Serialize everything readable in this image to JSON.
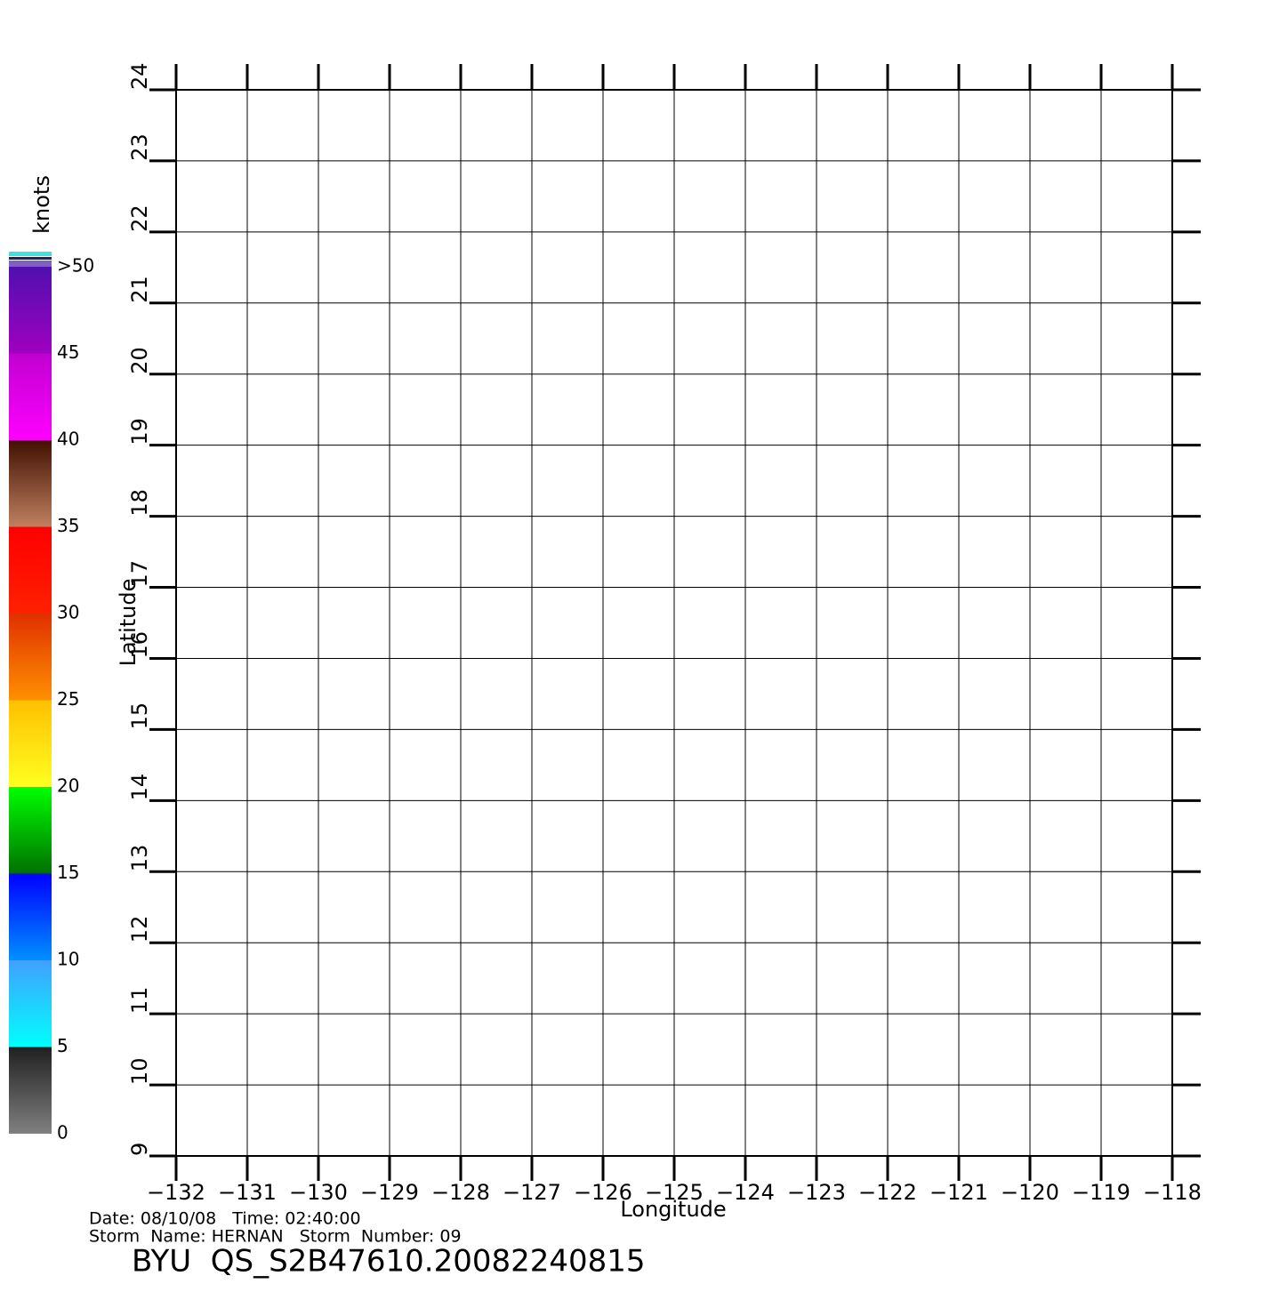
{
  "chart_data": {
    "type": "wind-barb",
    "xlabel": "Longitude",
    "ylabel": "Latitude",
    "xlim": [
      -132,
      -118
    ],
    "xticks": [
      {
        "value": -132,
        "label": "−132"
      },
      {
        "value": -131,
        "label": "−131"
      },
      {
        "value": -130,
        "label": "−130"
      },
      {
        "value": -129,
        "label": "−129"
      },
      {
        "value": -128,
        "label": "−128"
      },
      {
        "value": -127,
        "label": "−127"
      },
      {
        "value": -126,
        "label": "−126"
      },
      {
        "value": -125,
        "label": "−125"
      },
      {
        "value": -124,
        "label": "−124"
      },
      {
        "value": -123,
        "label": "−123"
      },
      {
        "value": -122,
        "label": "−122"
      },
      {
        "value": -121,
        "label": "−121"
      },
      {
        "value": -120,
        "label": "−120"
      },
      {
        "value": -119,
        "label": "−119"
      },
      {
        "value": -118,
        "label": "−118"
      }
    ],
    "ylim": [
      9,
      24
    ],
    "yticks": [
      9,
      10,
      11,
      12,
      13,
      14,
      15,
      16,
      17,
      18,
      19,
      20,
      21,
      22,
      23,
      24
    ],
    "grid": true,
    "colorbar": {
      "label": "knots",
      "lim": [
        0,
        50
      ],
      "ticks": [
        0,
        5,
        10,
        15,
        20,
        25,
        30,
        35,
        40,
        45,
        {
          "value": 50,
          "label": ">50"
        }
      ],
      "colors": [
        [
          "#808080",
          "#202020"
        ],
        [
          "#00ffff",
          "#40a0ff"
        ],
        [
          "#0090ff",
          "#0000ff"
        ],
        [
          "#007000",
          "#00ff00"
        ],
        [
          "#ffff20",
          "#ffc000"
        ],
        [
          "#ff9000",
          "#e03000"
        ],
        [
          "#ff2000",
          "#ff0000"
        ],
        [
          "#c08060",
          "#401000"
        ],
        [
          "#ff00ff",
          "#c000d0"
        ],
        [
          "#a000c0",
          "#5010b0"
        ]
      ]
    },
    "annotations": [
      "Date: 08/10/08   Time: 02:40:00",
      "Storm  Name: HERNAN   Storm  Number: 09",
      "BYU  QS_S2B47610.20082240815"
    ]
  }
}
